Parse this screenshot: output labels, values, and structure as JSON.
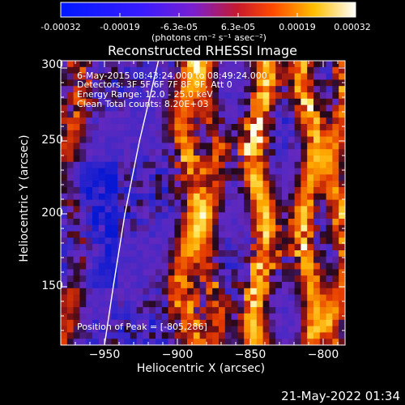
{
  "colorbar": {
    "tick_labels": [
      "-0.00032",
      "-0.00019",
      "-6.3e-05",
      "6.3e-05",
      "0.00019",
      "0.00032"
    ],
    "unit_label": "(photons cm⁻² s⁻¹ asec⁻²)"
  },
  "annotation": {
    "line1": "6-May-2015 08:43:24.000 to 08:49:24.000",
    "line2": "Detectors: 3F 5F 6F 7F 8F 9F, Att 0",
    "line3": "Energy Range: 12.0 - 25.0 keV",
    "line4": "Clean    Total counts: 8.20E+03",
    "peak": "Position of Peak = [-805,286]"
  },
  "footer": {
    "timestamp": "21-May-2022 01:34"
  },
  "colors": {
    "background": "#000000",
    "foreground": "#ffffff",
    "limb_line": "#ffffff"
  },
  "chart_data": {
    "type": "heatmap",
    "title": "Reconstructed RHESSI Image",
    "xlabel": "Heliocentric X (arcsec)",
    "ylabel": "Heliocentric Y (arcsec)",
    "xlim": [
      -980,
      -785
    ],
    "ylim": [
      110,
      305
    ],
    "x_ticks": [
      -950,
      -900,
      -850,
      -800
    ],
    "y_ticks": [
      150,
      200,
      250,
      300
    ],
    "x_tick_labels": [
      "−950",
      "−900",
      "−850",
      "−800"
    ],
    "y_tick_labels": [
      "150",
      "200",
      "250",
      "300"
    ],
    "value_range": [
      -0.00032,
      0.00032
    ],
    "colormap": "blue-purple-red-orange-yellow-white",
    "peak_position": [
      -805,
      286
    ],
    "limb_curve": [
      [
        -950,
        110
      ],
      [
        -944,
        150
      ],
      [
        -936,
        200
      ],
      [
        -926,
        250
      ],
      [
        -913,
        305
      ]
    ]
  }
}
